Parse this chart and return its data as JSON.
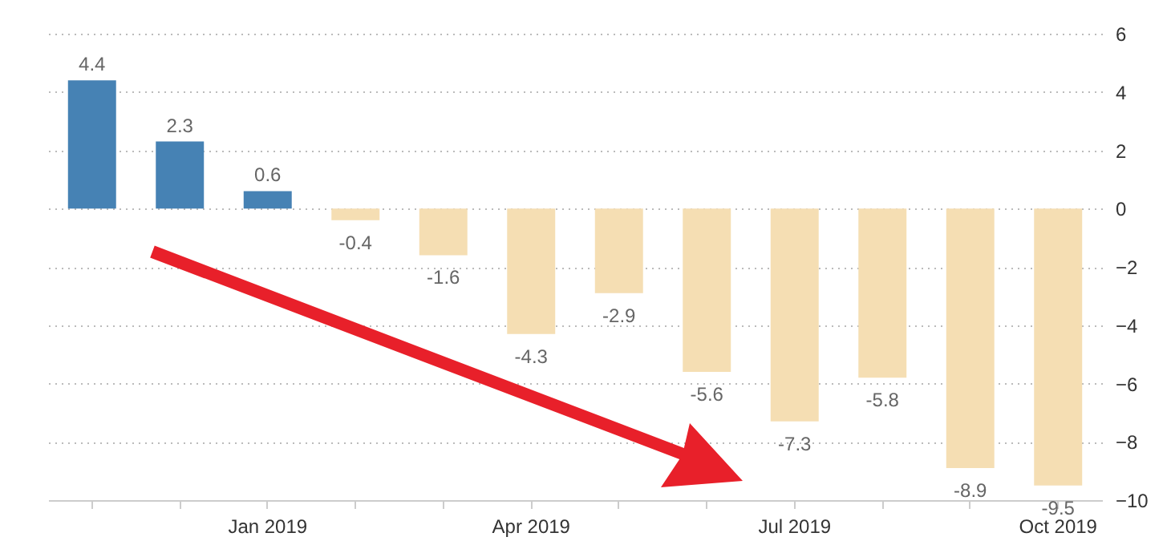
{
  "chart_data": {
    "type": "bar",
    "categories": [
      null,
      null,
      "Jan 2019",
      null,
      null,
      "Apr 2019",
      null,
      null,
      "Jul 2019",
      null,
      null,
      "Oct 2019"
    ],
    "values": [
      4.4,
      2.3,
      0.6,
      -0.4,
      -1.6,
      -4.3,
      -2.9,
      -5.6,
      -7.3,
      -5.8,
      -8.9,
      -9.5
    ],
    "colors": [
      "#4682b4",
      "#4682b4",
      "#4682b4",
      "#f5deb3",
      "#f5deb3",
      "#f5deb3",
      "#f5deb3",
      "#f5deb3",
      "#f5deb3",
      "#f5deb3",
      "#f5deb3",
      "#f5deb3"
    ],
    "ylim": [
      -10,
      6
    ],
    "yticks": [
      6,
      4,
      2,
      0,
      -2,
      -4,
      -6,
      -8,
      -10
    ],
    "grid": "y",
    "data_labels": true
  }
}
